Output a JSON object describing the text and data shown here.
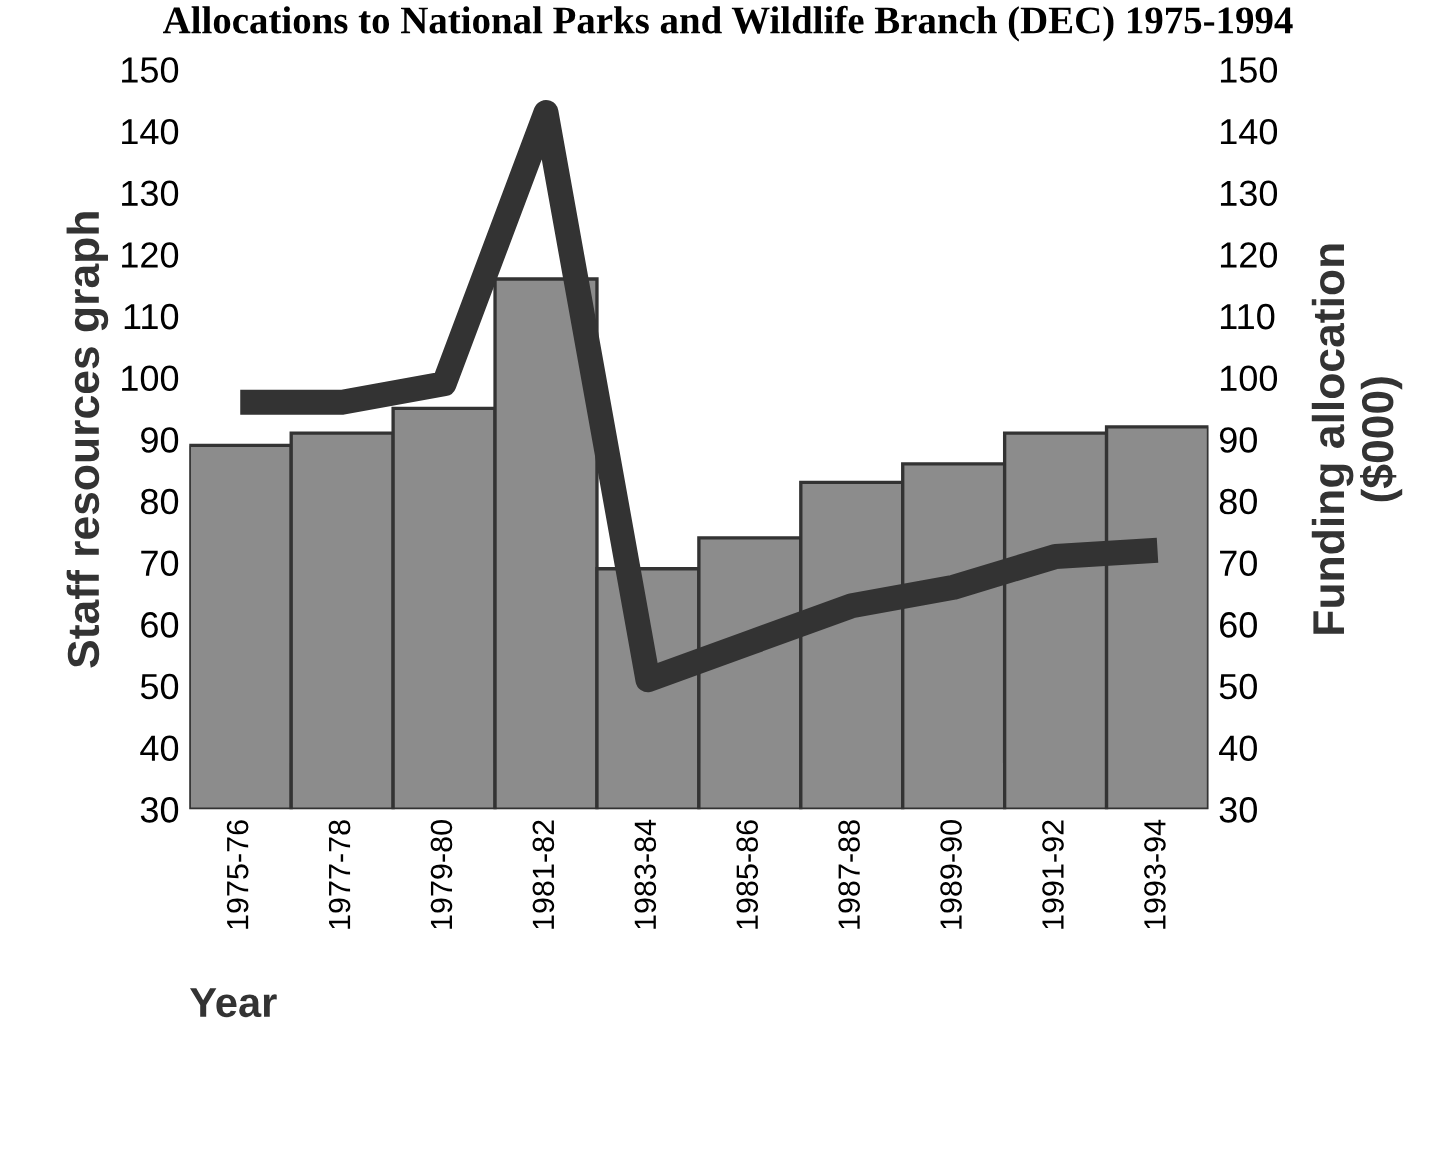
{
  "chart_data": {
    "type": "bar",
    "title": "Allocations to National Parks and Wildlife Branch (DEC) 1975-1994",
    "xlabel": "Year",
    "ylabel": "Staff resources graph",
    "y2label": "Funding allocation\n($000)",
    "categories": [
      "1975-76",
      "1977-78",
      "1979-80",
      "1981-82",
      "1983-84",
      "1985-86",
      "1987-88",
      "1989-90",
      "1991-92",
      "1993-94"
    ],
    "series": [
      {
        "color": "#8c8c8c",
        "values": [
          89,
          91,
          95,
          116,
          69,
          74,
          83,
          86,
          91,
          92
        ]
      },
      {
        "type": "line",
        "color": "#333333",
        "values": [
          96,
          96,
          99,
          143,
          51,
          57,
          63,
          66,
          71,
          72
        ]
      }
    ],
    "ylim": [
      30,
      150
    ],
    "yticks": [
      30,
      40,
      50,
      60,
      70,
      80,
      90,
      100,
      110,
      120,
      130,
      140,
      150
    ],
    "y2lim": [
      30,
      150
    ],
    "y2ticks": [
      30,
      40,
      50,
      60,
      70,
      80,
      90,
      100,
      110,
      120,
      130,
      140,
      150
    ],
    "grid": false
  }
}
